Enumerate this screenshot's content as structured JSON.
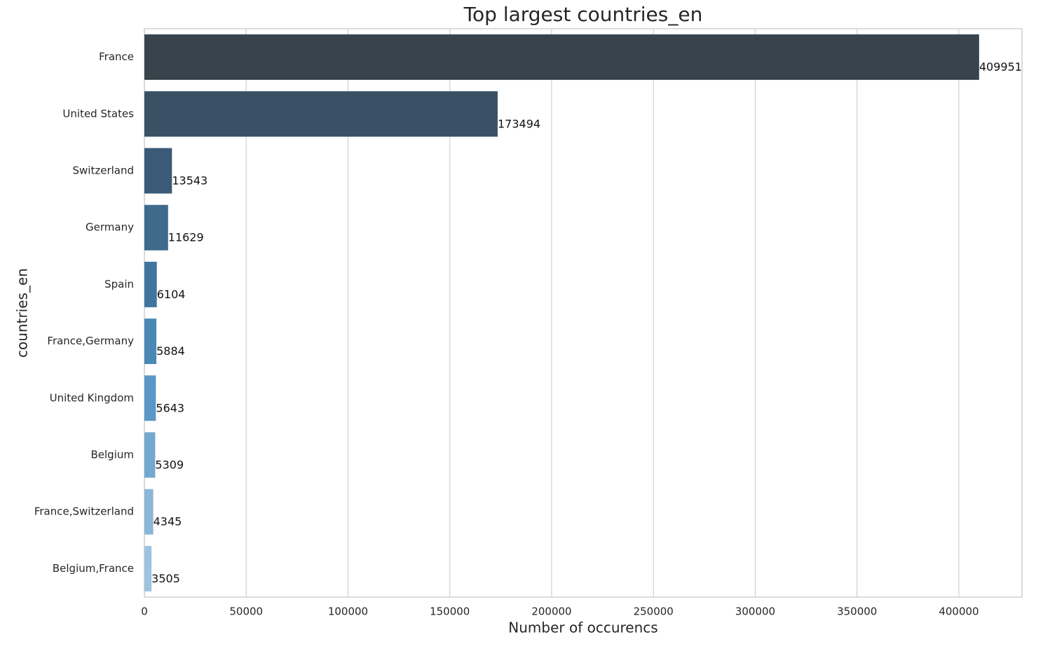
{
  "chart_data": {
    "type": "bar",
    "orientation": "horizontal",
    "title": "Top largest countries_en",
    "x_label": "Number of occurencs",
    "y_label": "countries_en",
    "categories": [
      "France",
      "United States",
      "Switzerland",
      "Germany",
      "Spain",
      "France,Germany",
      "United Kingdom",
      "Belgium",
      "France,Switzerland",
      "Belgium,France"
    ],
    "values": [
      409951,
      173494,
      13543,
      11629,
      6104,
      5884,
      5643,
      5309,
      4345,
      3505
    ],
    "colors": [
      "#37444b",
      "#3a5065",
      "#3b5a78",
      "#3e6a8c",
      "#4175a0",
      "#4b88b5",
      "#5a97c4",
      "#74a8ce",
      "#8bb6d6",
      "#9dc3de"
    ],
    "xlim": [
      0,
      431000
    ],
    "xticks": [
      0,
      50000,
      100000,
      150000,
      200000,
      250000,
      300000,
      350000,
      400000
    ],
    "grid": true
  }
}
